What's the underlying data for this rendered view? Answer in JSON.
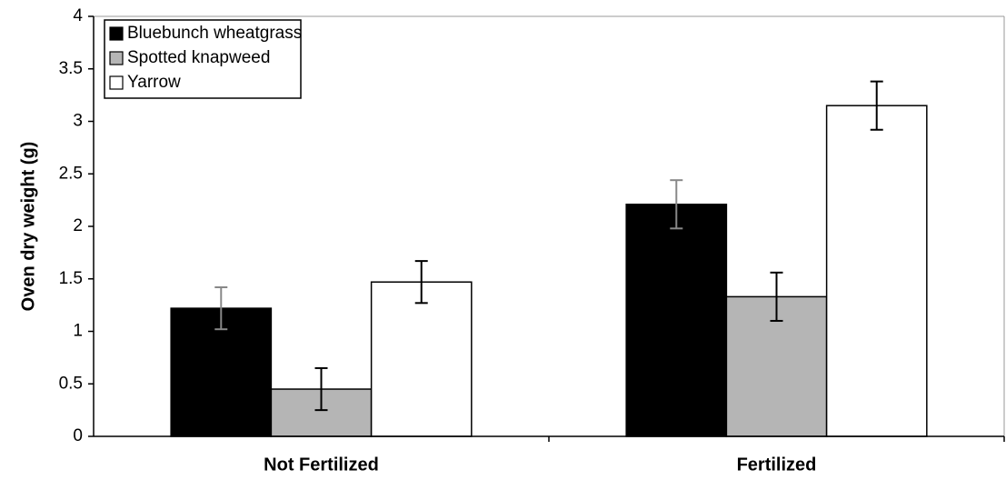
{
  "chart_data": {
    "type": "bar",
    "ylabel": "Oven dry weight (g)",
    "categories": [
      "Not Fertilized",
      "Fertilized"
    ],
    "series": [
      {
        "name": "Bluebunch wheatgrass",
        "color": "#000000",
        "values": [
          1.22,
          2.21
        ],
        "errors": [
          0.2,
          0.23
        ]
      },
      {
        "name": "Spotted knapweed",
        "color": "#b5b5b5",
        "values": [
          0.45,
          1.33
        ],
        "errors": [
          0.2,
          0.23
        ]
      },
      {
        "name": "Yarrow",
        "color": "#ffffff",
        "values": [
          1.47,
          3.15
        ],
        "errors": [
          0.2,
          0.23
        ]
      }
    ],
    "ylim": [
      0,
      4
    ],
    "yticks": [
      0,
      0.5,
      1,
      1.5,
      2,
      2.5,
      3,
      3.5,
      4
    ],
    "grid": false,
    "legend": "top-left"
  }
}
